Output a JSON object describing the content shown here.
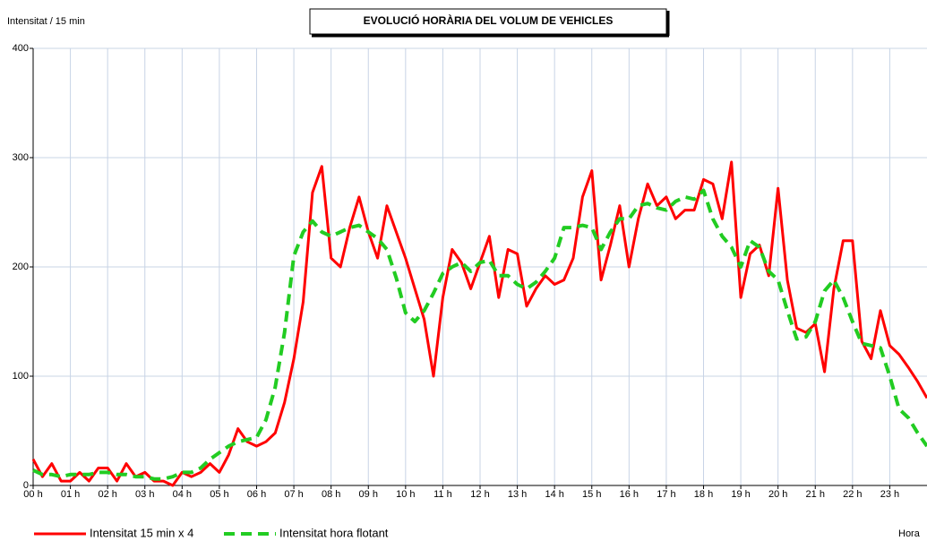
{
  "chart_data": {
    "type": "line",
    "title": "EVOLUCIÓ HORÀRIA DEL VOLUM  DE VEHICLES",
    "y_label": "Intensitat / 15 min",
    "x_label": "Hora",
    "xlim": [
      0,
      24
    ],
    "ylim": [
      0,
      400
    ],
    "yticks": [
      0,
      100,
      200,
      300,
      400
    ],
    "xticks": [
      {
        "value": 0,
        "label": "00 h"
      },
      {
        "value": 1,
        "label": "01 h"
      },
      {
        "value": 2,
        "label": "02 h"
      },
      {
        "value": 3,
        "label": "03 h"
      },
      {
        "value": 4,
        "label": "04 h"
      },
      {
        "value": 5,
        "label": "05 h"
      },
      {
        "value": 6,
        "label": "06 h"
      },
      {
        "value": 7,
        "label": "07 h"
      },
      {
        "value": 8,
        "label": "08 h"
      },
      {
        "value": 9,
        "label": "09 h"
      },
      {
        "value": 10,
        "label": "10 h"
      },
      {
        "value": 11,
        "label": "11 h"
      },
      {
        "value": 12,
        "label": "12 h"
      },
      {
        "value": 13,
        "label": "13 h"
      },
      {
        "value": 14,
        "label": "14 h"
      },
      {
        "value": 15,
        "label": "15 h"
      },
      {
        "value": 16,
        "label": "16 h"
      },
      {
        "value": 17,
        "label": "17 h"
      },
      {
        "value": 18,
        "label": "18 h"
      },
      {
        "value": 19,
        "label": "19 h"
      },
      {
        "value": 20,
        "label": "20 h"
      },
      {
        "value": 21,
        "label": "21 h"
      },
      {
        "value": 22,
        "label": "22 h"
      },
      {
        "value": 23,
        "label": "23 h"
      }
    ],
    "grid": true,
    "x": [
      0,
      0.25,
      0.5,
      0.75,
      1,
      1.25,
      1.5,
      1.75,
      2,
      2.25,
      2.5,
      2.75,
      3,
      3.25,
      3.5,
      3.75,
      4,
      4.25,
      4.5,
      4.75,
      5,
      5.25,
      5.5,
      5.75,
      6,
      6.25,
      6.5,
      6.75,
      7,
      7.25,
      7.5,
      7.75,
      8,
      8.25,
      8.5,
      8.75,
      9,
      9.25,
      9.5,
      9.75,
      10,
      10.25,
      10.5,
      10.75,
      11,
      11.25,
      11.5,
      11.75,
      12,
      12.25,
      12.5,
      12.75,
      13,
      13.25,
      13.5,
      13.75,
      14,
      14.25,
      14.5,
      14.75,
      15,
      15.25,
      15.5,
      15.75,
      16,
      16.25,
      16.5,
      16.75,
      17,
      17.25,
      17.5,
      17.75,
      18,
      18.25,
      18.5,
      18.75,
      19,
      19.25,
      19.5,
      19.75,
      20,
      20.25,
      20.5,
      20.75,
      21,
      21.25,
      21.5,
      21.75,
      22,
      22.25,
      22.5,
      22.75,
      23,
      23.25,
      23.5,
      23.75,
      24
    ],
    "series": [
      {
        "name": "Intensitat 15 min x  4",
        "color": "#ff0000",
        "dashed": false,
        "values": [
          24,
          8,
          20,
          4,
          4,
          12,
          4,
          16,
          16,
          4,
          20,
          8,
          12,
          4,
          4,
          0,
          12,
          8,
          12,
          20,
          12,
          28,
          52,
          40,
          36,
          40,
          48,
          76,
          116,
          168,
          268,
          292,
          208,
          200,
          236,
          264,
          232,
          208,
          256,
          232,
          208,
          180,
          152,
          100,
          172,
          216,
          204,
          180,
          204,
          228,
          172,
          216,
          212,
          164,
          180,
          192,
          184,
          188,
          208,
          264,
          288,
          188,
          220,
          256,
          200,
          244,
          276,
          256,
          264,
          244,
          252,
          252,
          280,
          276,
          244,
          296,
          172,
          212,
          220,
          192,
          272,
          188,
          144,
          140,
          148,
          104,
          180,
          224,
          224,
          132,
          116,
          160,
          128,
          120,
          108,
          95,
          80
        ]
      },
      {
        "name": "Intensitat hora flotant",
        "color": "#22cc22",
        "dashed": true,
        "values": [
          14,
          10,
          10,
          8,
          10,
          10,
          10,
          12,
          12,
          10,
          10,
          8,
          8,
          6,
          6,
          8,
          12,
          12,
          16,
          24,
          30,
          36,
          40,
          42,
          44,
          60,
          90,
          140,
          210,
          232,
          242,
          232,
          228,
          232,
          236,
          238,
          232,
          226,
          216,
          190,
          158,
          150,
          160,
          176,
          194,
          200,
          204,
          196,
          204,
          206,
          192,
          192,
          184,
          180,
          186,
          196,
          208,
          236,
          236,
          238,
          236,
          216,
          232,
          244,
          244,
          256,
          258,
          254,
          252,
          260,
          264,
          262,
          270,
          244,
          228,
          218,
          200,
          224,
          218,
          196,
          188,
          160,
          134,
          136,
          150,
          178,
          188,
          172,
          150,
          130,
          128,
          126,
          100,
          70,
          62,
          48,
          36
        ]
      }
    ]
  }
}
